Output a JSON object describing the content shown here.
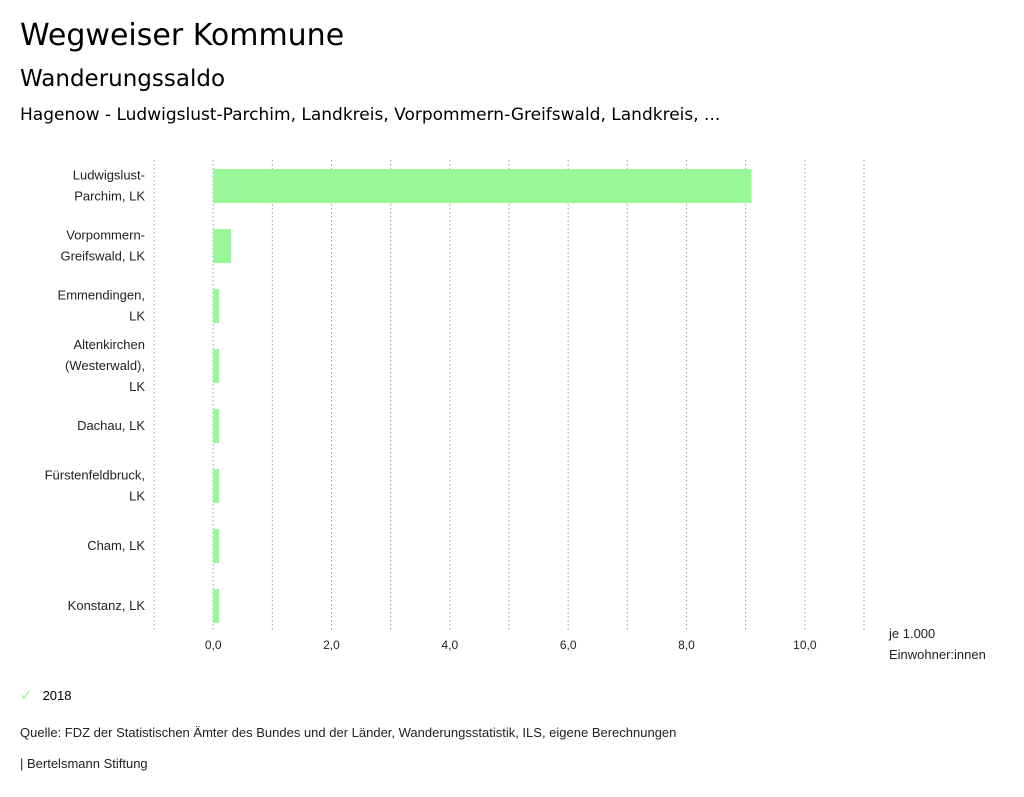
{
  "header": {
    "title": "Wegweiser Kommune",
    "subtitle": "Wanderungssaldo",
    "entities": "Hagenow - Ludwigslust-Parchim, Landkreis, Vorpommern-Greifswald, Landkreis, ..."
  },
  "chart_data": {
    "type": "bar",
    "orientation": "horizontal",
    "categories": [
      [
        "Ludwigslust-",
        "Parchim, LK"
      ],
      [
        "Vorpommern-",
        "Greifswald, LK"
      ],
      [
        "Emmendingen,",
        "LK"
      ],
      [
        "Altenkirchen",
        "(Westerwald),",
        "LK"
      ],
      [
        "Dachau, LK"
      ],
      [
        "Fürstenfeldbruck,",
        "LK"
      ],
      [
        "Cham, LK"
      ],
      [
        "Konstanz, LK"
      ]
    ],
    "series": [
      {
        "name": "2018",
        "values": [
          9.1,
          0.3,
          0.1,
          0.1,
          0.1,
          0.1,
          0.1,
          0.1
        ],
        "color": "#98f898"
      }
    ],
    "xlim": [
      -1.0,
      11.0
    ],
    "ticks": [
      0,
      2,
      4,
      6,
      8,
      10
    ],
    "tick_labels": [
      "0,0",
      "2,0",
      "4,0",
      "6,0",
      "8,0",
      "10,0"
    ],
    "unit_label": [
      "je 1.000",
      "Einwohner:innen"
    ],
    "grid": true
  },
  "legend": {
    "label": "2018",
    "icon": "check-icon"
  },
  "footer": {
    "source": "Quelle: FDZ der Statistischen Ämter des Bundes und der Länder, Wanderungsstatistik, ILS, eigene Berechnungen",
    "credit": "| Bertelsmann Stiftung"
  }
}
